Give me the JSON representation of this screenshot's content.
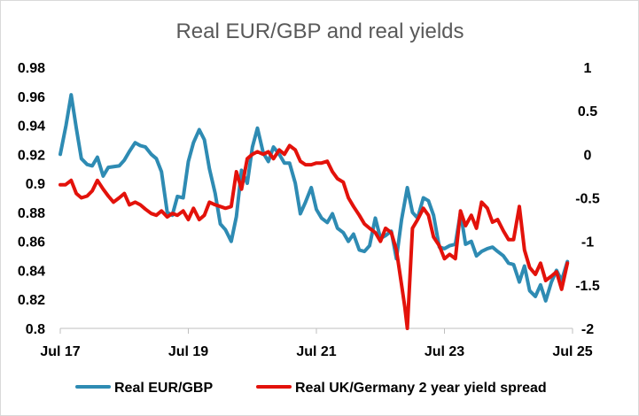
{
  "chart_data": {
    "type": "line",
    "title": "Real EUR/GBP and real yields",
    "x_tick_labels": [
      "Jul 17",
      "Jul 19",
      "Jul 21",
      "Jul 23",
      "Jul 25"
    ],
    "x_range": [
      2017.5,
      2025.5
    ],
    "y_left": {
      "range": [
        0.8,
        0.98
      ],
      "tick_values": [
        0.8,
        0.82,
        0.84,
        0.86,
        0.88,
        0.9,
        0.92,
        0.94,
        0.96,
        0.98
      ],
      "tick_labels": [
        "0.8",
        "0.82",
        "0.84",
        "0.86",
        "0.88",
        "0.9",
        "0.92",
        "0.94",
        "0.96",
        "0.98"
      ]
    },
    "y_right": {
      "range": [
        -2,
        1
      ],
      "tick_values": [
        -2,
        -1.5,
        -1,
        -0.5,
        0,
        0.5,
        1
      ],
      "tick_labels": [
        "-2",
        "-1.5",
        "-1",
        "-0.5",
        "0",
        "0.5",
        "1"
      ]
    },
    "grid": false,
    "legend_position": "bottom",
    "series": [
      {
        "name": "Real EUR/GBP",
        "axis": "left",
        "color": "#2e8bb3",
        "points": [
          [
            2017.5,
            0.92
          ],
          [
            2017.59,
            0.94
          ],
          [
            2017.67,
            0.961
          ],
          [
            2017.75,
            0.938
          ],
          [
            2017.83,
            0.917
          ],
          [
            2017.92,
            0.913
          ],
          [
            2018.0,
            0.912
          ],
          [
            2018.08,
            0.918
          ],
          [
            2018.17,
            0.905
          ],
          [
            2018.25,
            0.911
          ],
          [
            2018.42,
            0.912
          ],
          [
            2018.5,
            0.916
          ],
          [
            2018.58,
            0.922
          ],
          [
            2018.67,
            0.928
          ],
          [
            2018.75,
            0.926
          ],
          [
            2018.83,
            0.925
          ],
          [
            2018.92,
            0.92
          ],
          [
            2019.0,
            0.917
          ],
          [
            2019.08,
            0.908
          ],
          [
            2019.17,
            0.88
          ],
          [
            2019.25,
            0.878
          ],
          [
            2019.33,
            0.891
          ],
          [
            2019.42,
            0.89
          ],
          [
            2019.5,
            0.915
          ],
          [
            2019.58,
            0.928
          ],
          [
            2019.67,
            0.937
          ],
          [
            2019.75,
            0.93
          ],
          [
            2019.83,
            0.91
          ],
          [
            2019.92,
            0.893
          ],
          [
            2020.0,
            0.872
          ],
          [
            2020.08,
            0.868
          ],
          [
            2020.17,
            0.86
          ],
          [
            2020.25,
            0.877
          ],
          [
            2020.33,
            0.909
          ],
          [
            2020.42,
            0.9
          ],
          [
            2020.5,
            0.925
          ],
          [
            2020.58,
            0.938
          ],
          [
            2020.67,
            0.921
          ],
          [
            2020.75,
            0.915
          ],
          [
            2020.83,
            0.925
          ],
          [
            2020.92,
            0.92
          ],
          [
            2021.0,
            0.914
          ],
          [
            2021.08,
            0.914
          ],
          [
            2021.17,
            0.9
          ],
          [
            2021.25,
            0.879
          ],
          [
            2021.33,
            0.887
          ],
          [
            2021.42,
            0.897
          ],
          [
            2021.5,
            0.882
          ],
          [
            2021.58,
            0.876
          ],
          [
            2021.67,
            0.873
          ],
          [
            2021.75,
            0.879
          ],
          [
            2021.83,
            0.869
          ],
          [
            2021.92,
            0.866
          ],
          [
            2022.0,
            0.86
          ],
          [
            2022.08,
            0.865
          ],
          [
            2022.17,
            0.854
          ],
          [
            2022.25,
            0.853
          ],
          [
            2022.33,
            0.857
          ],
          [
            2022.42,
            0.876
          ],
          [
            2022.5,
            0.862
          ],
          [
            2022.58,
            0.864
          ],
          [
            2022.67,
            0.867
          ],
          [
            2022.75,
            0.848
          ],
          [
            2022.83,
            0.875
          ],
          [
            2022.92,
            0.897
          ],
          [
            2023.0,
            0.88
          ],
          [
            2023.08,
            0.876
          ],
          [
            2023.17,
            0.89
          ],
          [
            2023.25,
            0.888
          ],
          [
            2023.33,
            0.878
          ],
          [
            2023.42,
            0.856
          ],
          [
            2023.5,
            0.855
          ],
          [
            2023.58,
            0.857
          ],
          [
            2023.67,
            0.858
          ],
          [
            2023.75,
            0.88
          ],
          [
            2023.83,
            0.858
          ],
          [
            2023.92,
            0.86
          ],
          [
            2024.0,
            0.85
          ],
          [
            2024.08,
            0.853
          ],
          [
            2024.17,
            0.855
          ],
          [
            2024.25,
            0.856
          ],
          [
            2024.33,
            0.853
          ],
          [
            2024.42,
            0.85
          ],
          [
            2024.5,
            0.845
          ],
          [
            2024.58,
            0.844
          ],
          [
            2024.67,
            0.832
          ],
          [
            2024.75,
            0.843
          ],
          [
            2024.83,
            0.826
          ],
          [
            2024.92,
            0.822
          ],
          [
            2025.0,
            0.83
          ],
          [
            2025.08,
            0.819
          ],
          [
            2025.17,
            0.832
          ],
          [
            2025.25,
            0.84
          ],
          [
            2025.33,
            0.833
          ],
          [
            2025.42,
            0.846
          ]
        ]
      },
      {
        "name": "Real UK/Germany 2 year yield spread",
        "axis": "right",
        "color": "#e3120b",
        "points": [
          [
            2017.5,
            -0.35
          ],
          [
            2017.58,
            -0.35
          ],
          [
            2017.67,
            -0.3
          ],
          [
            2017.75,
            -0.45
          ],
          [
            2017.83,
            -0.5
          ],
          [
            2017.92,
            -0.48
          ],
          [
            2018.0,
            -0.42
          ],
          [
            2018.08,
            -0.3
          ],
          [
            2018.17,
            -0.4
          ],
          [
            2018.25,
            -0.48
          ],
          [
            2018.33,
            -0.55
          ],
          [
            2018.42,
            -0.5
          ],
          [
            2018.5,
            -0.45
          ],
          [
            2018.58,
            -0.58
          ],
          [
            2018.67,
            -0.55
          ],
          [
            2018.75,
            -0.58
          ],
          [
            2018.83,
            -0.63
          ],
          [
            2018.92,
            -0.68
          ],
          [
            2019.0,
            -0.7
          ],
          [
            2019.08,
            -0.65
          ],
          [
            2019.17,
            -0.72
          ],
          [
            2019.25,
            -0.68
          ],
          [
            2019.33,
            -0.7
          ],
          [
            2019.42,
            -0.65
          ],
          [
            2019.5,
            -0.75
          ],
          [
            2019.58,
            -0.62
          ],
          [
            2019.67,
            -0.75
          ],
          [
            2019.75,
            -0.7
          ],
          [
            2019.83,
            -0.55
          ],
          [
            2019.92,
            -0.58
          ],
          [
            2020.0,
            -0.6
          ],
          [
            2020.08,
            -0.62
          ],
          [
            2020.17,
            -0.6
          ],
          [
            2020.25,
            -0.2
          ],
          [
            2020.33,
            -0.4
          ],
          [
            2020.42,
            -0.05
          ],
          [
            2020.5,
            0.0
          ],
          [
            2020.58,
            0.03
          ],
          [
            2020.67,
            0.0
          ],
          [
            2020.75,
            0.03
          ],
          [
            2020.83,
            -0.05
          ],
          [
            2020.92,
            0.05
          ],
          [
            2021.0,
            0.0
          ],
          [
            2021.08,
            0.1
          ],
          [
            2021.17,
            0.05
          ],
          [
            2021.25,
            -0.08
          ],
          [
            2021.33,
            -0.12
          ],
          [
            2021.42,
            -0.12
          ],
          [
            2021.5,
            -0.1
          ],
          [
            2021.58,
            -0.1
          ],
          [
            2021.67,
            -0.08
          ],
          [
            2021.75,
            -0.2
          ],
          [
            2021.83,
            -0.28
          ],
          [
            2021.92,
            -0.32
          ],
          [
            2022.0,
            -0.5
          ],
          [
            2022.08,
            -0.6
          ],
          [
            2022.17,
            -0.7
          ],
          [
            2022.25,
            -0.8
          ],
          [
            2022.33,
            -0.85
          ],
          [
            2022.42,
            -0.9
          ],
          [
            2022.5,
            -1.0
          ],
          [
            2022.58,
            -0.85
          ],
          [
            2022.67,
            -0.9
          ],
          [
            2022.75,
            -1.1
          ],
          [
            2022.83,
            -1.5
          ],
          [
            2022.88,
            -1.75
          ],
          [
            2022.92,
            -2.0
          ],
          [
            2023.0,
            -0.85
          ],
          [
            2023.08,
            -0.75
          ],
          [
            2023.17,
            -0.62
          ],
          [
            2023.25,
            -0.7
          ],
          [
            2023.33,
            -0.95
          ],
          [
            2023.42,
            -1.05
          ],
          [
            2023.5,
            -1.2
          ],
          [
            2023.58,
            -1.15
          ],
          [
            2023.67,
            -1.2
          ],
          [
            2023.75,
            -0.65
          ],
          [
            2023.83,
            -0.82
          ],
          [
            2023.92,
            -0.7
          ],
          [
            2024.0,
            -0.85
          ],
          [
            2024.08,
            -0.55
          ],
          [
            2024.17,
            -0.62
          ],
          [
            2024.25,
            -0.78
          ],
          [
            2024.33,
            -0.75
          ],
          [
            2024.42,
            -0.88
          ],
          [
            2024.5,
            -0.98
          ],
          [
            2024.58,
            -0.98
          ],
          [
            2024.67,
            -0.6
          ],
          [
            2024.75,
            -1.1
          ],
          [
            2024.83,
            -1.3
          ],
          [
            2024.92,
            -1.38
          ],
          [
            2025.0,
            -1.25
          ],
          [
            2025.08,
            -1.45
          ],
          [
            2025.17,
            -1.4
          ],
          [
            2025.25,
            -1.35
          ],
          [
            2025.33,
            -1.55
          ],
          [
            2025.42,
            -1.25
          ]
        ]
      }
    ]
  }
}
